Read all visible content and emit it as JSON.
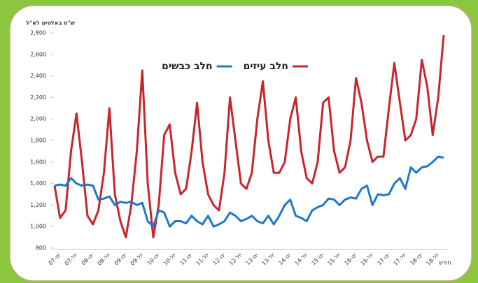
{
  "chart_data": {
    "type": "line",
    "y_axis_label": "ש\"ח באלפים לא\"ל",
    "x_axis_label": "חודש",
    "categories": [
      "07-ינו",
      null,
      null,
      "07-יול",
      null,
      null,
      "08-ינו",
      null,
      null,
      "08-יול",
      null,
      null,
      "09-ינו",
      null,
      null,
      "09-יול",
      null,
      null,
      "10-ינו",
      null,
      null,
      "10-יול",
      null,
      null,
      "11-ינו",
      null,
      null,
      "11-יול",
      null,
      null,
      "12-ינו",
      null,
      null,
      "12-יול",
      null,
      null,
      "13-ינו",
      null,
      null,
      "13-יול",
      null,
      null,
      "14-ינו",
      null,
      null,
      "14-יול",
      null,
      null,
      "15-ינו",
      null,
      null,
      "15-יול",
      null,
      null,
      "16-ינו",
      null,
      null,
      "16-יול",
      null,
      null,
      "17-ינו",
      null,
      null,
      "17-יול",
      null,
      null,
      "18-ינו",
      null,
      null,
      "18-יול",
      null,
      null
    ],
    "series": [
      {
        "name": "חלב עיזים",
        "color": "#c8262b",
        "values": [
          1380,
          1080,
          1150,
          1700,
          2050,
          1600,
          1100,
          1020,
          1150,
          1500,
          2100,
          1300,
          1050,
          900,
          1200,
          1700,
          2450,
          1400,
          900,
          1200,
          1850,
          1950,
          1500,
          1300,
          1350,
          1700,
          2150,
          1600,
          1300,
          1200,
          1150,
          1500,
          2200,
          1800,
          1400,
          1350,
          1500,
          2000,
          2350,
          1800,
          1500,
          1500,
          1600,
          2000,
          2200,
          1700,
          1450,
          1400,
          1600,
          2150,
          2200,
          1700,
          1500,
          1550,
          1800,
          2380,
          2150,
          1800,
          1600,
          1650,
          1650,
          2100,
          2520,
          2150,
          1800,
          1850,
          2000,
          2550,
          2300,
          1850,
          2200,
          2780
        ]
      },
      {
        "name": "חלב כבשים",
        "color": "#1f78c8",
        "values": [
          1380,
          1390,
          1380,
          1450,
          1400,
          1380,
          1390,
          1380,
          1250,
          1260,
          1280,
          1200,
          1230,
          1220,
          1230,
          1200,
          1220,
          1050,
          1000,
          1150,
          1130,
          1000,
          1050,
          1050,
          1030,
          1100,
          1050,
          1020,
          1100,
          1000,
          1020,
          1050,
          1130,
          1100,
          1050,
          1070,
          1100,
          1050,
          1030,
          1100,
          1020,
          1100,
          1200,
          1250,
          1100,
          1080,
          1050,
          1150,
          1180,
          1200,
          1260,
          1250,
          1200,
          1250,
          1270,
          1260,
          1350,
          1380,
          1200,
          1300,
          1290,
          1300,
          1400,
          1450,
          1350,
          1550,
          1500,
          1550,
          1560,
          1600,
          1650,
          1640
        ]
      }
    ],
    "ylim": [
      800,
      2800
    ],
    "yticks": [
      800,
      {
        "value": 1000,
        "label": "1,000"
      },
      {
        "value": 1200,
        "label": "1,200"
      },
      {
        "value": 1400,
        "label": "1,400"
      },
      {
        "value": 1600,
        "label": "1,600"
      },
      {
        "value": 1800,
        "label": "1,800"
      },
      {
        "value": 2000,
        "label": "2,000"
      },
      {
        "value": 2200,
        "label": "2,200"
      },
      {
        "value": 2400,
        "label": "2,400"
      },
      {
        "value": 2600,
        "label": "2,600"
      },
      {
        "value": 2800,
        "label": "2,800"
      }
    ]
  }
}
